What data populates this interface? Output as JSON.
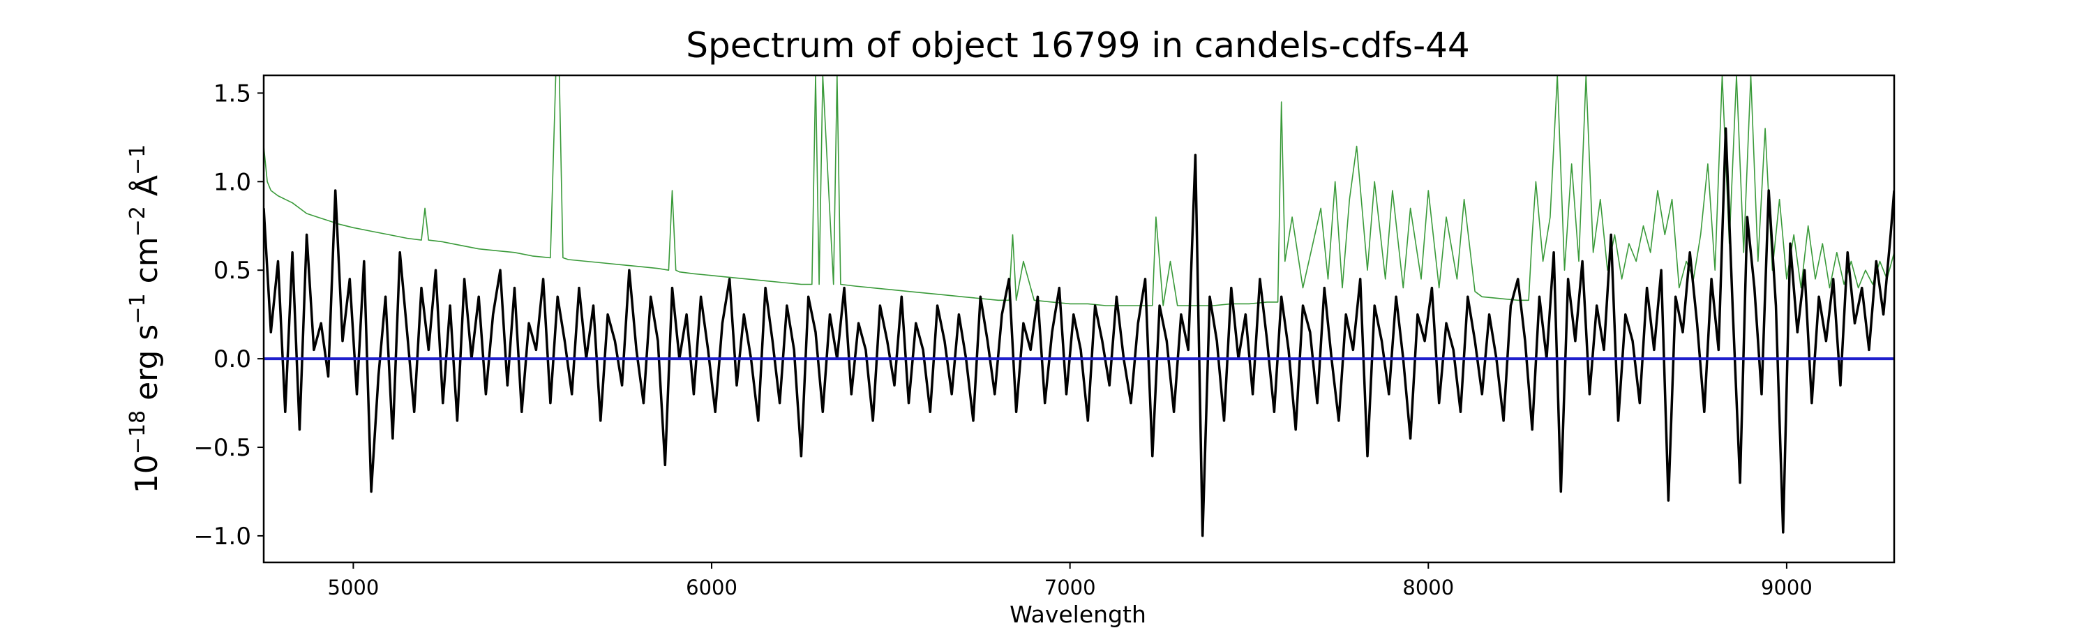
{
  "chart_data": {
    "type": "line",
    "title": "Spectrum of object 16799 in candels-cdfs-44",
    "xlabel": "Wavelength",
    "ylabel": {
      "base": "10",
      "exp": "−18",
      "unit_erg": " erg s",
      "exp_s": "−1",
      "unit_cm": " cm",
      "exp_cm": "−2",
      "unit_ang": " Å",
      "exp_ang": "−1"
    },
    "xlim": [
      4750,
      9300
    ],
    "ylim": [
      -1.15,
      1.6
    ],
    "xticks": [
      5000,
      6000,
      7000,
      8000,
      9000
    ],
    "xtick_labels": [
      "5000",
      "6000",
      "7000",
      "8000",
      "9000"
    ],
    "yticks": [
      -1.0,
      -0.5,
      0.0,
      0.5,
      1.0,
      1.5
    ],
    "ytick_labels": [
      "−1.0",
      "−0.5",
      "0.0",
      "0.5",
      "1.0",
      "1.5"
    ],
    "grid": false,
    "legend": "none",
    "zero_line": {
      "y": 0.0,
      "color": "#1f1fcc"
    },
    "series": [
      {
        "color": "#000000",
        "x": [
          4750,
          4770,
          4790,
          4810,
          4830,
          4850,
          4870,
          4890,
          4910,
          4930,
          4950,
          4970,
          4990,
          5010,
          5030,
          5050,
          5070,
          5090,
          5110,
          5130,
          5150,
          5170,
          5190,
          5210,
          5230,
          5250,
          5270,
          5290,
          5310,
          5330,
          5350,
          5370,
          5390,
          5410,
          5430,
          5450,
          5470,
          5490,
          5510,
          5530,
          5550,
          5570,
          5590,
          5610,
          5630,
          5650,
          5670,
          5690,
          5710,
          5730,
          5750,
          5770,
          5790,
          5810,
          5830,
          5850,
          5870,
          5890,
          5910,
          5930,
          5950,
          5970,
          5990,
          6010,
          6030,
          6050,
          6070,
          6090,
          6110,
          6130,
          6150,
          6170,
          6190,
          6210,
          6230,
          6250,
          6270,
          6290,
          6310,
          6330,
          6350,
          6370,
          6390,
          6410,
          6430,
          6450,
          6470,
          6490,
          6510,
          6530,
          6550,
          6570,
          6590,
          6610,
          6630,
          6650,
          6670,
          6690,
          6710,
          6730,
          6750,
          6770,
          6790,
          6810,
          6830,
          6850,
          6870,
          6890,
          6910,
          6930,
          6950,
          6970,
          6990,
          7010,
          7030,
          7050,
          7070,
          7090,
          7110,
          7130,
          7150,
          7170,
          7190,
          7210,
          7230,
          7250,
          7270,
          7290,
          7310,
          7330,
          7350,
          7370,
          7390,
          7410,
          7430,
          7450,
          7470,
          7490,
          7510,
          7530,
          7550,
          7570,
          7590,
          7610,
          7630,
          7650,
          7670,
          7690,
          7710,
          7730,
          7750,
          7770,
          7790,
          7810,
          7830,
          7850,
          7870,
          7890,
          7910,
          7930,
          7950,
          7970,
          7990,
          8010,
          8030,
          8050,
          8070,
          8090,
          8110,
          8130,
          8150,
          8170,
          8190,
          8210,
          8230,
          8250,
          8270,
          8290,
          8310,
          8330,
          8350,
          8370,
          8390,
          8410,
          8430,
          8450,
          8470,
          8490,
          8510,
          8530,
          8550,
          8570,
          8590,
          8610,
          8630,
          8650,
          8670,
          8690,
          8710,
          8730,
          8750,
          8770,
          8790,
          8810,
          8830,
          8850,
          8870,
          8890,
          8910,
          8930,
          8950,
          8970,
          8990,
          9010,
          9030,
          9050,
          9070,
          9090,
          9110,
          9130,
          9150,
          9170,
          9190,
          9210,
          9230,
          9250,
          9270,
          9290,
          9300
        ],
        "y": [
          0.85,
          0.15,
          0.55,
          -0.3,
          0.6,
          -0.4,
          0.7,
          0.05,
          0.2,
          -0.1,
          0.95,
          0.1,
          0.45,
          -0.2,
          0.55,
          -0.75,
          -0.1,
          0.35,
          -0.45,
          0.6,
          0.15,
          -0.3,
          0.4,
          0.05,
          0.5,
          -0.25,
          0.3,
          -0.35,
          0.45,
          0.0,
          0.35,
          -0.2,
          0.25,
          0.5,
          -0.15,
          0.4,
          -0.3,
          0.2,
          0.05,
          0.45,
          -0.25,
          0.35,
          0.1,
          -0.2,
          0.4,
          0.0,
          0.3,
          -0.35,
          0.25,
          0.1,
          -0.15,
          0.5,
          0.05,
          -0.25,
          0.35,
          0.1,
          -0.6,
          0.4,
          0.0,
          0.25,
          -0.2,
          0.35,
          0.05,
          -0.3,
          0.2,
          0.45,
          -0.15,
          0.25,
          0.0,
          -0.35,
          0.4,
          0.1,
          -0.25,
          0.3,
          0.05,
          -0.55,
          0.35,
          0.15,
          -0.3,
          0.25,
          0.0,
          0.4,
          -0.2,
          0.2,
          0.05,
          -0.35,
          0.3,
          0.1,
          -0.15,
          0.35,
          -0.25,
          0.2,
          0.05,
          -0.3,
          0.3,
          0.1,
          -0.2,
          0.25,
          0.0,
          -0.35,
          0.35,
          0.1,
          -0.2,
          0.25,
          0.45,
          -0.3,
          0.2,
          0.05,
          0.35,
          -0.25,
          0.15,
          0.4,
          -0.2,
          0.25,
          0.05,
          -0.35,
          0.3,
          0.1,
          -0.15,
          0.35,
          0.0,
          -0.25,
          0.2,
          0.45,
          -0.55,
          0.3,
          0.1,
          -0.3,
          0.25,
          0.05,
          1.15,
          -1.0,
          0.35,
          0.1,
          -0.35,
          0.4,
          0.0,
          0.25,
          -0.2,
          0.45,
          0.1,
          -0.3,
          0.35,
          0.05,
          -0.4,
          0.3,
          0.15,
          -0.25,
          0.4,
          0.0,
          -0.35,
          0.25,
          0.05,
          0.45,
          -0.55,
          0.3,
          0.1,
          -0.2,
          0.35,
          0.0,
          -0.45,
          0.25,
          0.1,
          0.4,
          -0.25,
          0.2,
          0.05,
          -0.3,
          0.35,
          0.1,
          -0.2,
          0.25,
          0.0,
          -0.35,
          0.3,
          0.45,
          0.1,
          -0.4,
          0.35,
          0.0,
          0.6,
          -0.75,
          0.45,
          0.1,
          0.55,
          -0.2,
          0.3,
          0.05,
          0.7,
          -0.35,
          0.25,
          0.1,
          -0.25,
          0.4,
          0.05,
          0.5,
          -0.8,
          0.35,
          0.15,
          0.6,
          0.2,
          -0.3,
          0.45,
          0.05,
          1.3,
          0.25,
          -0.7,
          0.8,
          0.4,
          -0.2,
          0.95,
          0.3,
          -0.98,
          0.65,
          0.15,
          0.5,
          -0.25,
          0.35,
          0.1,
          0.45,
          -0.15,
          0.6,
          0.2,
          0.4,
          0.05,
          0.55,
          0.25,
          0.7,
          0.95
        ]
      },
      {
        "color": "#3a9a3a",
        "x": [
          4750,
          4760,
          4770,
          4790,
          4810,
          4830,
          4850,
          4870,
          4900,
          4930,
          4960,
          5000,
          5050,
          5100,
          5150,
          5190,
          5200,
          5210,
          5250,
          5300,
          5350,
          5400,
          5450,
          5500,
          5550,
          5565,
          5575,
          5585,
          5600,
          5650,
          5700,
          5750,
          5800,
          5850,
          5880,
          5890,
          5900,
          5910,
          5950,
          6000,
          6050,
          6100,
          6150,
          6200,
          6250,
          6280,
          6290,
          6300,
          6310,
          6340,
          6350,
          6360,
          6400,
          6450,
          6500,
          6550,
          6600,
          6650,
          6700,
          6750,
          6800,
          6830,
          6840,
          6850,
          6870,
          6900,
          6950,
          7000,
          7050,
          7100,
          7150,
          7200,
          7230,
          7240,
          7260,
          7280,
          7300,
          7350,
          7400,
          7450,
          7500,
          7550,
          7580,
          7590,
          7600,
          7620,
          7650,
          7700,
          7720,
          7740,
          7760,
          7780,
          7800,
          7830,
          7850,
          7880,
          7900,
          7930,
          7950,
          7980,
          8000,
          8030,
          8050,
          8080,
          8100,
          8130,
          8150,
          8200,
          8250,
          8280,
          8290,
          8300,
          8320,
          8340,
          8360,
          8380,
          8400,
          8420,
          8440,
          8460,
          8480,
          8500,
          8520,
          8540,
          8560,
          8580,
          8600,
          8620,
          8640,
          8660,
          8680,
          8700,
          8720,
          8740,
          8760,
          8780,
          8800,
          8820,
          8840,
          8860,
          8880,
          8900,
          8920,
          8940,
          8960,
          8980,
          9000,
          9020,
          9040,
          9060,
          9080,
          9100,
          9120,
          9140,
          9160,
          9180,
          9200,
          9220,
          9240,
          9260,
          9280,
          9300
        ],
        "y": [
          1.2,
          1.0,
          0.95,
          0.92,
          0.9,
          0.88,
          0.85,
          0.82,
          0.8,
          0.78,
          0.76,
          0.74,
          0.72,
          0.7,
          0.68,
          0.67,
          0.85,
          0.67,
          0.66,
          0.64,
          0.62,
          0.61,
          0.6,
          0.58,
          0.57,
          1.6,
          1.6,
          0.57,
          0.56,
          0.55,
          0.54,
          0.53,
          0.52,
          0.51,
          0.5,
          0.95,
          0.5,
          0.49,
          0.48,
          0.47,
          0.46,
          0.45,
          0.44,
          0.43,
          0.42,
          0.42,
          1.6,
          0.42,
          1.6,
          0.42,
          1.6,
          0.42,
          0.41,
          0.4,
          0.39,
          0.38,
          0.37,
          0.36,
          0.35,
          0.34,
          0.33,
          0.33,
          0.7,
          0.33,
          0.55,
          0.33,
          0.32,
          0.31,
          0.31,
          0.3,
          0.3,
          0.3,
          0.3,
          0.8,
          0.3,
          0.55,
          0.3,
          0.3,
          0.3,
          0.31,
          0.31,
          0.32,
          0.32,
          1.45,
          0.55,
          0.8,
          0.4,
          0.85,
          0.45,
          1.0,
          0.4,
          0.9,
          1.2,
          0.5,
          1.0,
          0.45,
          0.95,
          0.4,
          0.85,
          0.45,
          0.95,
          0.4,
          0.8,
          0.45,
          0.9,
          0.38,
          0.35,
          0.34,
          0.33,
          0.33,
          0.7,
          1.0,
          0.55,
          0.8,
          1.6,
          0.5,
          1.1,
          0.55,
          1.6,
          0.6,
          0.9,
          0.5,
          0.7,
          0.45,
          0.65,
          0.55,
          0.75,
          0.6,
          0.95,
          0.7,
          0.9,
          0.4,
          0.55,
          0.45,
          0.7,
          1.1,
          0.5,
          1.6,
          0.65,
          1.6,
          0.6,
          1.6,
          0.55,
          1.3,
          0.5,
          0.9,
          0.45,
          0.7,
          0.4,
          0.75,
          0.45,
          0.65,
          0.4,
          0.6,
          0.42,
          0.55,
          0.4,
          0.5,
          0.42,
          0.55,
          0.45,
          0.6
        ]
      }
    ]
  }
}
